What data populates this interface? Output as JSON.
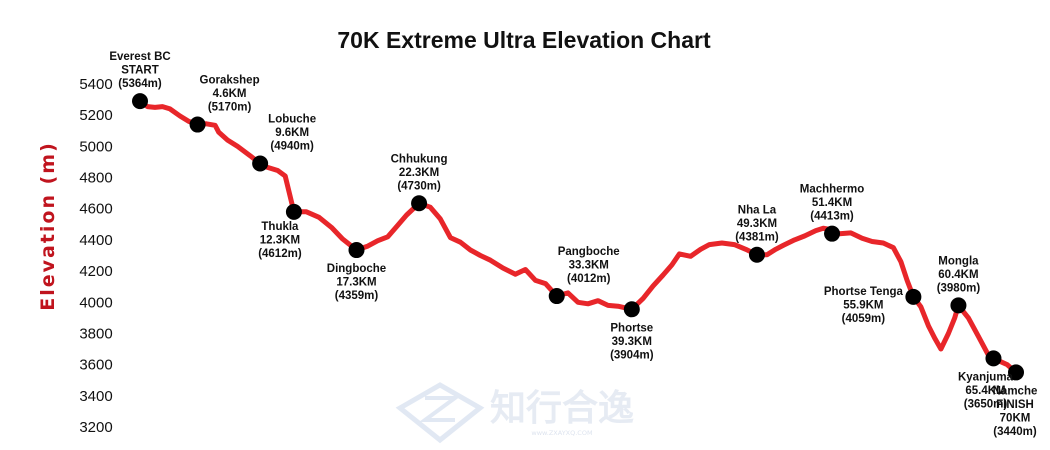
{
  "chart_data": {
    "type": "line",
    "title": "70K Extreme Ultra Elevation Chart",
    "xlabel": "",
    "ylabel": "Elevation  (m)",
    "ylim": [
      3200,
      5400
    ],
    "yticks": [
      3200,
      3400,
      3600,
      3800,
      4000,
      4200,
      4400,
      4600,
      4800,
      5000,
      5200,
      5400
    ],
    "xlim": [
      0,
      70
    ],
    "grid": false,
    "legend": "none",
    "line_color": "#e8262a",
    "marker_color": "#000000",
    "profile": [
      [
        0,
        5290
      ],
      [
        0.6,
        5255
      ],
      [
        1.2,
        5250
      ],
      [
        1.8,
        5255
      ],
      [
        2.4,
        5240
      ],
      [
        3.2,
        5195
      ],
      [
        3.9,
        5160
      ],
      [
        4.6,
        5140
      ],
      [
        5.3,
        5145
      ],
      [
        6.0,
        5135
      ],
      [
        6.3,
        5090
      ],
      [
        7.0,
        5040
      ],
      [
        7.8,
        5000
      ],
      [
        8.8,
        4940
      ],
      [
        9.6,
        4890
      ],
      [
        10.2,
        4865
      ],
      [
        11.0,
        4845
      ],
      [
        11.6,
        4810
      ],
      [
        12.3,
        4580
      ],
      [
        13.3,
        4580
      ],
      [
        14.3,
        4545
      ],
      [
        15.3,
        4480
      ],
      [
        16.2,
        4405
      ],
      [
        17.3,
        4335
      ],
      [
        18.2,
        4360
      ],
      [
        19.0,
        4395
      ],
      [
        19.8,
        4420
      ],
      [
        20.5,
        4485
      ],
      [
        21.3,
        4560
      ],
      [
        22.3,
        4635
      ],
      [
        23.2,
        4610
      ],
      [
        24.0,
        4535
      ],
      [
        24.8,
        4415
      ],
      [
        25.6,
        4385
      ],
      [
        26.4,
        4335
      ],
      [
        27.2,
        4300
      ],
      [
        28.0,
        4270
      ],
      [
        29.0,
        4220
      ],
      [
        30.0,
        4180
      ],
      [
        30.8,
        4210
      ],
      [
        31.6,
        4140
      ],
      [
        32.4,
        4120
      ],
      [
        33.3,
        4040
      ],
      [
        34.2,
        4060
      ],
      [
        35.0,
        4000
      ],
      [
        35.8,
        3990
      ],
      [
        36.6,
        4010
      ],
      [
        37.4,
        3980
      ],
      [
        38.2,
        3975
      ],
      [
        39.3,
        3955
      ],
      [
        40.2,
        4025
      ],
      [
        41.0,
        4105
      ],
      [
        41.8,
        4175
      ],
      [
        42.5,
        4240
      ],
      [
        43.1,
        4310
      ],
      [
        44.0,
        4295
      ],
      [
        44.8,
        4340
      ],
      [
        45.5,
        4370
      ],
      [
        46.5,
        4380
      ],
      [
        47.5,
        4370
      ],
      [
        48.4,
        4340
      ],
      [
        49.3,
        4305
      ],
      [
        50.1,
        4305
      ],
      [
        50.8,
        4340
      ],
      [
        51.4,
        4365
      ],
      [
        52.3,
        4400
      ],
      [
        53.1,
        4425
      ],
      [
        54.0,
        4460
      ],
      [
        54.6,
        4475
      ],
      [
        55.3,
        4465
      ],
      [
        55.9,
        4440
      ],
      [
        56.8,
        4445
      ],
      [
        57.7,
        4410
      ],
      [
        58.5,
        4390
      ],
      [
        59.4,
        4380
      ],
      [
        60.2,
        4350
      ],
      [
        60.8,
        4260
      ],
      [
        61.3,
        4140
      ],
      [
        61.8,
        4035
      ],
      [
        62.4,
        3970
      ],
      [
        63.0,
        3850
      ],
      [
        63.5,
        3770
      ],
      [
        64.0,
        3700
      ],
      [
        64.6,
        3800
      ],
      [
        65.1,
        3900
      ],
      [
        65.4,
        3980
      ],
      [
        66.2,
        3900
      ],
      [
        67.0,
        3780
      ],
      [
        67.8,
        3660
      ],
      [
        68.6,
        3625
      ],
      [
        69.3,
        3600
      ],
      [
        70.0,
        3550
      ]
    ],
    "stations": [
      {
        "name": "Everest BC",
        "extra": "START",
        "km": null,
        "km_pos": 0,
        "elev": 5290,
        "elev_label": "(5364m)",
        "pos": "above"
      },
      {
        "name": "Gorakshep",
        "extra": "",
        "km": "4.6KM",
        "km_pos": 4.6,
        "elev": 5140,
        "elev_label": "(5170m)",
        "pos": "above-right"
      },
      {
        "name": "Lobuche",
        "extra": "",
        "km": "9.6KM",
        "km_pos": 9.6,
        "elev": 4890,
        "elev_label": "(4940m)",
        "pos": "above-right"
      },
      {
        "name": "Thukla",
        "extra": "",
        "km": "12.3KM",
        "km_pos": 12.3,
        "elev": 4580,
        "elev_label": "(4612m)",
        "pos": "below-left"
      },
      {
        "name": "Dingboche",
        "extra": "",
        "km": "17.3KM",
        "km_pos": 17.3,
        "elev": 4335,
        "elev_label": "(4359m)",
        "pos": "below"
      },
      {
        "name": "Chhukung",
        "extra": "",
        "km": "22.3KM",
        "km_pos": 22.3,
        "elev": 4635,
        "elev_label": "(4730m)",
        "pos": "above"
      },
      {
        "name": "Pangboche",
        "extra": "",
        "km": "33.3KM",
        "km_pos": 33.3,
        "elev": 4040,
        "elev_label": "(4012m)",
        "pos": "above-right"
      },
      {
        "name": "Phortse",
        "extra": "",
        "km": "39.3KM",
        "km_pos": 39.3,
        "elev": 3955,
        "elev_label": "(3904m)",
        "pos": "below"
      },
      {
        "name": "Nha La",
        "extra": "",
        "km": "49.3KM",
        "km_pos": 49.3,
        "elev": 4305,
        "elev_label": "(4381m)",
        "pos": "above"
      },
      {
        "name": "Machhermo",
        "extra": "",
        "km": "51.4KM",
        "km_pos": 55.3,
        "elev": 4440,
        "elev_label": "(4413m)",
        "pos": "above"
      },
      {
        "name": "Phortse Tenga",
        "extra": "",
        "km": "55.9KM",
        "km_pos": 61.8,
        "elev": 4035,
        "elev_label": "(4059m)",
        "pos": "left"
      },
      {
        "name": "Mongla",
        "extra": "",
        "km": "60.4KM",
        "km_pos": 65.4,
        "elev": 3980,
        "elev_label": "(3980m)",
        "pos": "above"
      },
      {
        "name": "Kyanjuma",
        "extra": "",
        "km": "65.4KM",
        "km_pos": 68.2,
        "elev": 3640,
        "elev_label": "(3650m)",
        "pos": "below"
      },
      {
        "name": "Namche",
        "extra": "FINISH",
        "km": "70KM",
        "km_pos": 70,
        "elev": 3550,
        "elev_label": "(3440m)",
        "pos": "below"
      }
    ]
  },
  "watermark": {
    "brand": "知行合逸",
    "url": "www.ZXAYXQ.COM"
  }
}
